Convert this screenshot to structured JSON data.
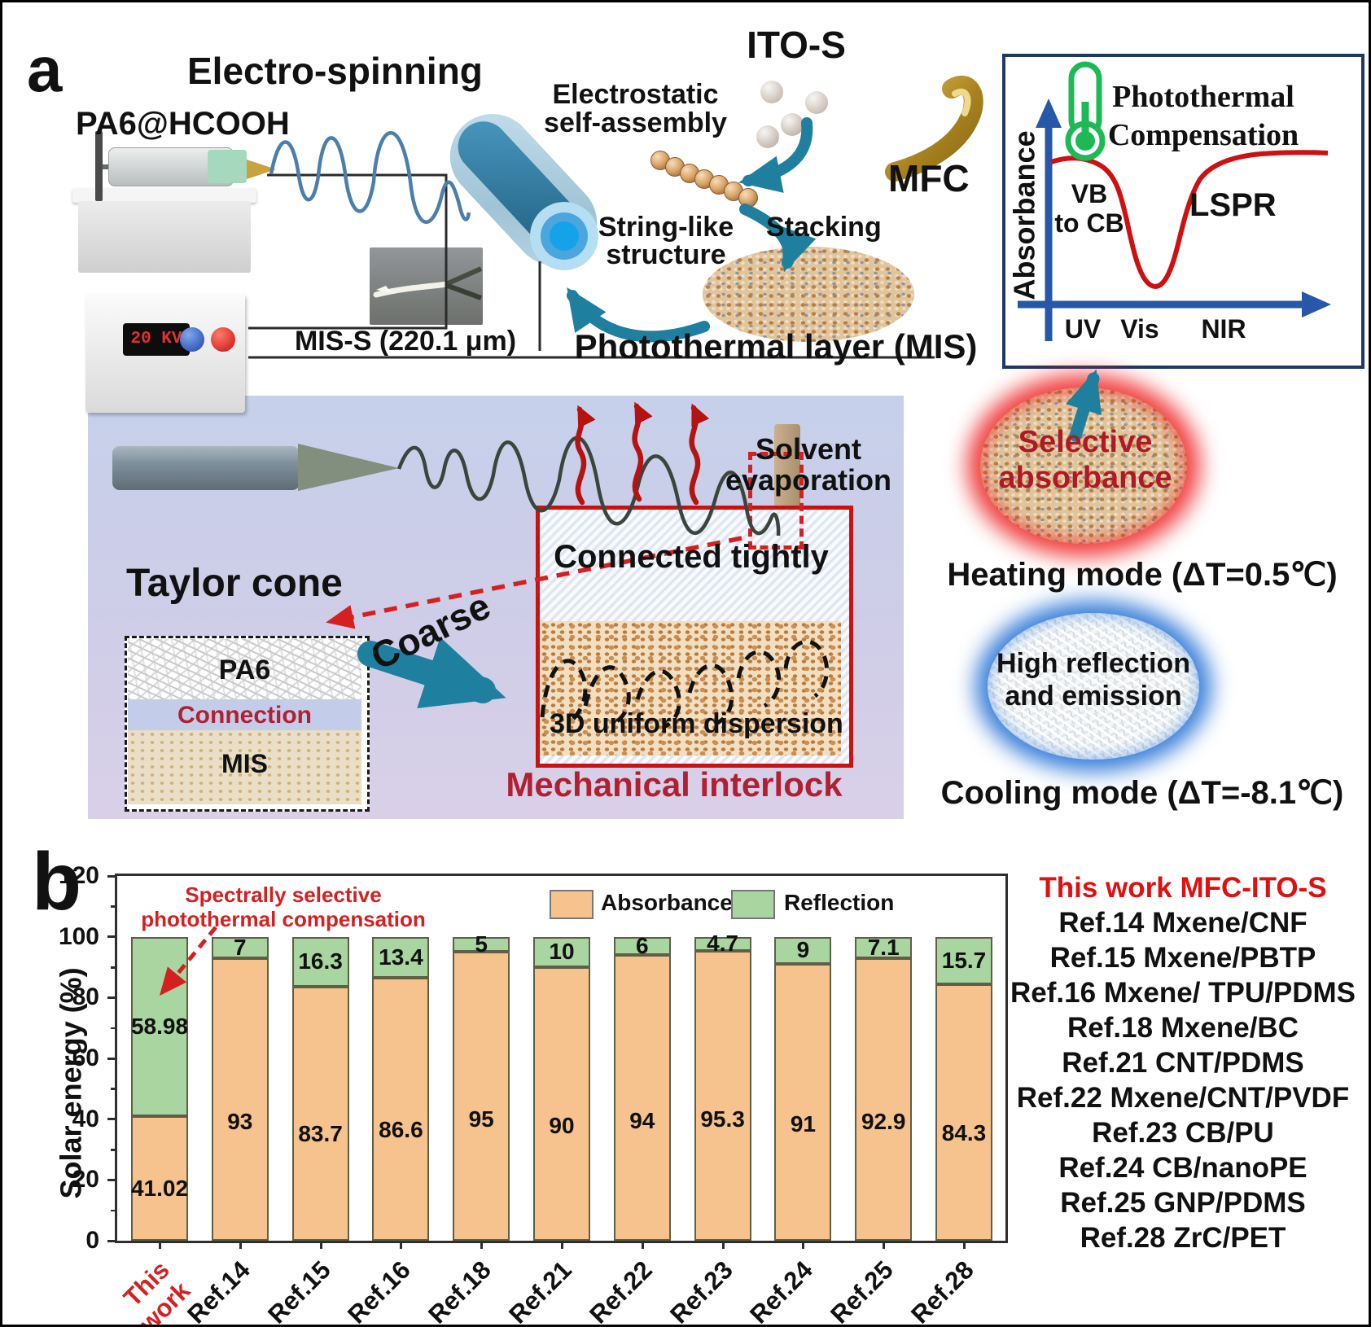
{
  "colors": {
    "absorbance_bar": "#F6C28D",
    "reflection_bar": "#A8D5A0",
    "annotation_red": "#D42020",
    "dark_red_text": "#B01E2E",
    "teal_arrow": "#1E7F9E",
    "inset_border_navy": "#1F3864",
    "axis_blue": "#2757A8",
    "curve_red": "#CC1111",
    "thermometer_green": "#1DB954",
    "panel_lavender_top": "#C6D0EA",
    "panel_lavender_bottom": "#D9D0E8"
  },
  "panel_a": {
    "label": "a",
    "electrospinning": {
      "title": "Electro-spinning",
      "material": "PA6@HCOOH",
      "voltage": "20 KV",
      "fiber_label": "MIS-S (220.1 μm)"
    },
    "assembly": {
      "ito_s": "ITO-S",
      "mfc": "MFC",
      "electrostatic_line1": "Electrostatic",
      "electrostatic_line2": "self-assembly",
      "string_line1": "String-like",
      "string_line2": "structure",
      "stacking": "Stacking",
      "photothermal_layer": "Photothermal layer (MIS)"
    },
    "inset_plot": {
      "title_line1": "Photothermal",
      "title_line2": "Compensation",
      "ylabel": "Absorbance",
      "band_line1": "VB",
      "band_line2": "to CB",
      "lspr": "LSPR",
      "x_ticks": [
        "UV",
        "Vis",
        "NIR"
      ]
    },
    "process": {
      "taylor_cone": "Taylor cone",
      "solvent_line1": "Solvent",
      "solvent_line2": "evaporation",
      "connected": "Connected tightly",
      "coarse": "Coarse",
      "dispersion": "3D uniform dispersion",
      "interlock": "Mechanical interlock",
      "layer_pa6": "PA6",
      "layer_connection": "Connection",
      "layer_mis": "MIS"
    },
    "modes": {
      "selective_line1": "Selective",
      "selective_line2": "absorbance",
      "heating": "Heating mode (ΔT=0.5℃)",
      "reflect_line1": "High reflection",
      "reflect_line2": "and emission",
      "cooling": "Cooling mode (ΔT=-8.1℃)"
    }
  },
  "panel_b": {
    "label": "b",
    "annotation_line1": "Spectrally selective",
    "annotation_line2": "photothermal compensation",
    "references": [
      "This work MFC-ITO-S",
      "Ref.14 Mxene/CNF",
      "Ref.15 Mxene/PBTP",
      "Ref.16 Mxene/ TPU/PDMS",
      "Ref.18 Mxene/BC",
      "Ref.21 CNT/PDMS",
      "Ref.22 Mxene/CNT/PVDF",
      "Ref.23 CB/PU",
      "Ref.24 CB/nanoPE",
      "Ref.25 GNP/PDMS",
      "Ref.28 ZrC/PET"
    ]
  },
  "chart_data": {
    "type": "bar",
    "stacked": true,
    "title": "",
    "xlabel": "",
    "ylabel": "Solar energy (%)",
    "ylim": [
      0,
      120
    ],
    "yticks": [
      0,
      20,
      40,
      60,
      80,
      100,
      120
    ],
    "grid": false,
    "legend_position": "top-inside",
    "categories": [
      "This work",
      "Ref.14",
      "Ref.15",
      "Ref.16",
      "Ref.18",
      "Ref.21",
      "Ref.22",
      "Ref.23",
      "Ref.24",
      "Ref.25",
      "Ref.28"
    ],
    "series": [
      {
        "name": "Absorbance",
        "color": "#F6C28D",
        "values": [
          41.02,
          93,
          83.7,
          86.6,
          95,
          90,
          94,
          95.3,
          91,
          92.9,
          84.3
        ]
      },
      {
        "name": "Reflection",
        "color": "#A8D5A0",
        "values": [
          58.98,
          7,
          16.3,
          13.4,
          5,
          10,
          6,
          4.7,
          9,
          7.1,
          15.7
        ]
      }
    ]
  }
}
